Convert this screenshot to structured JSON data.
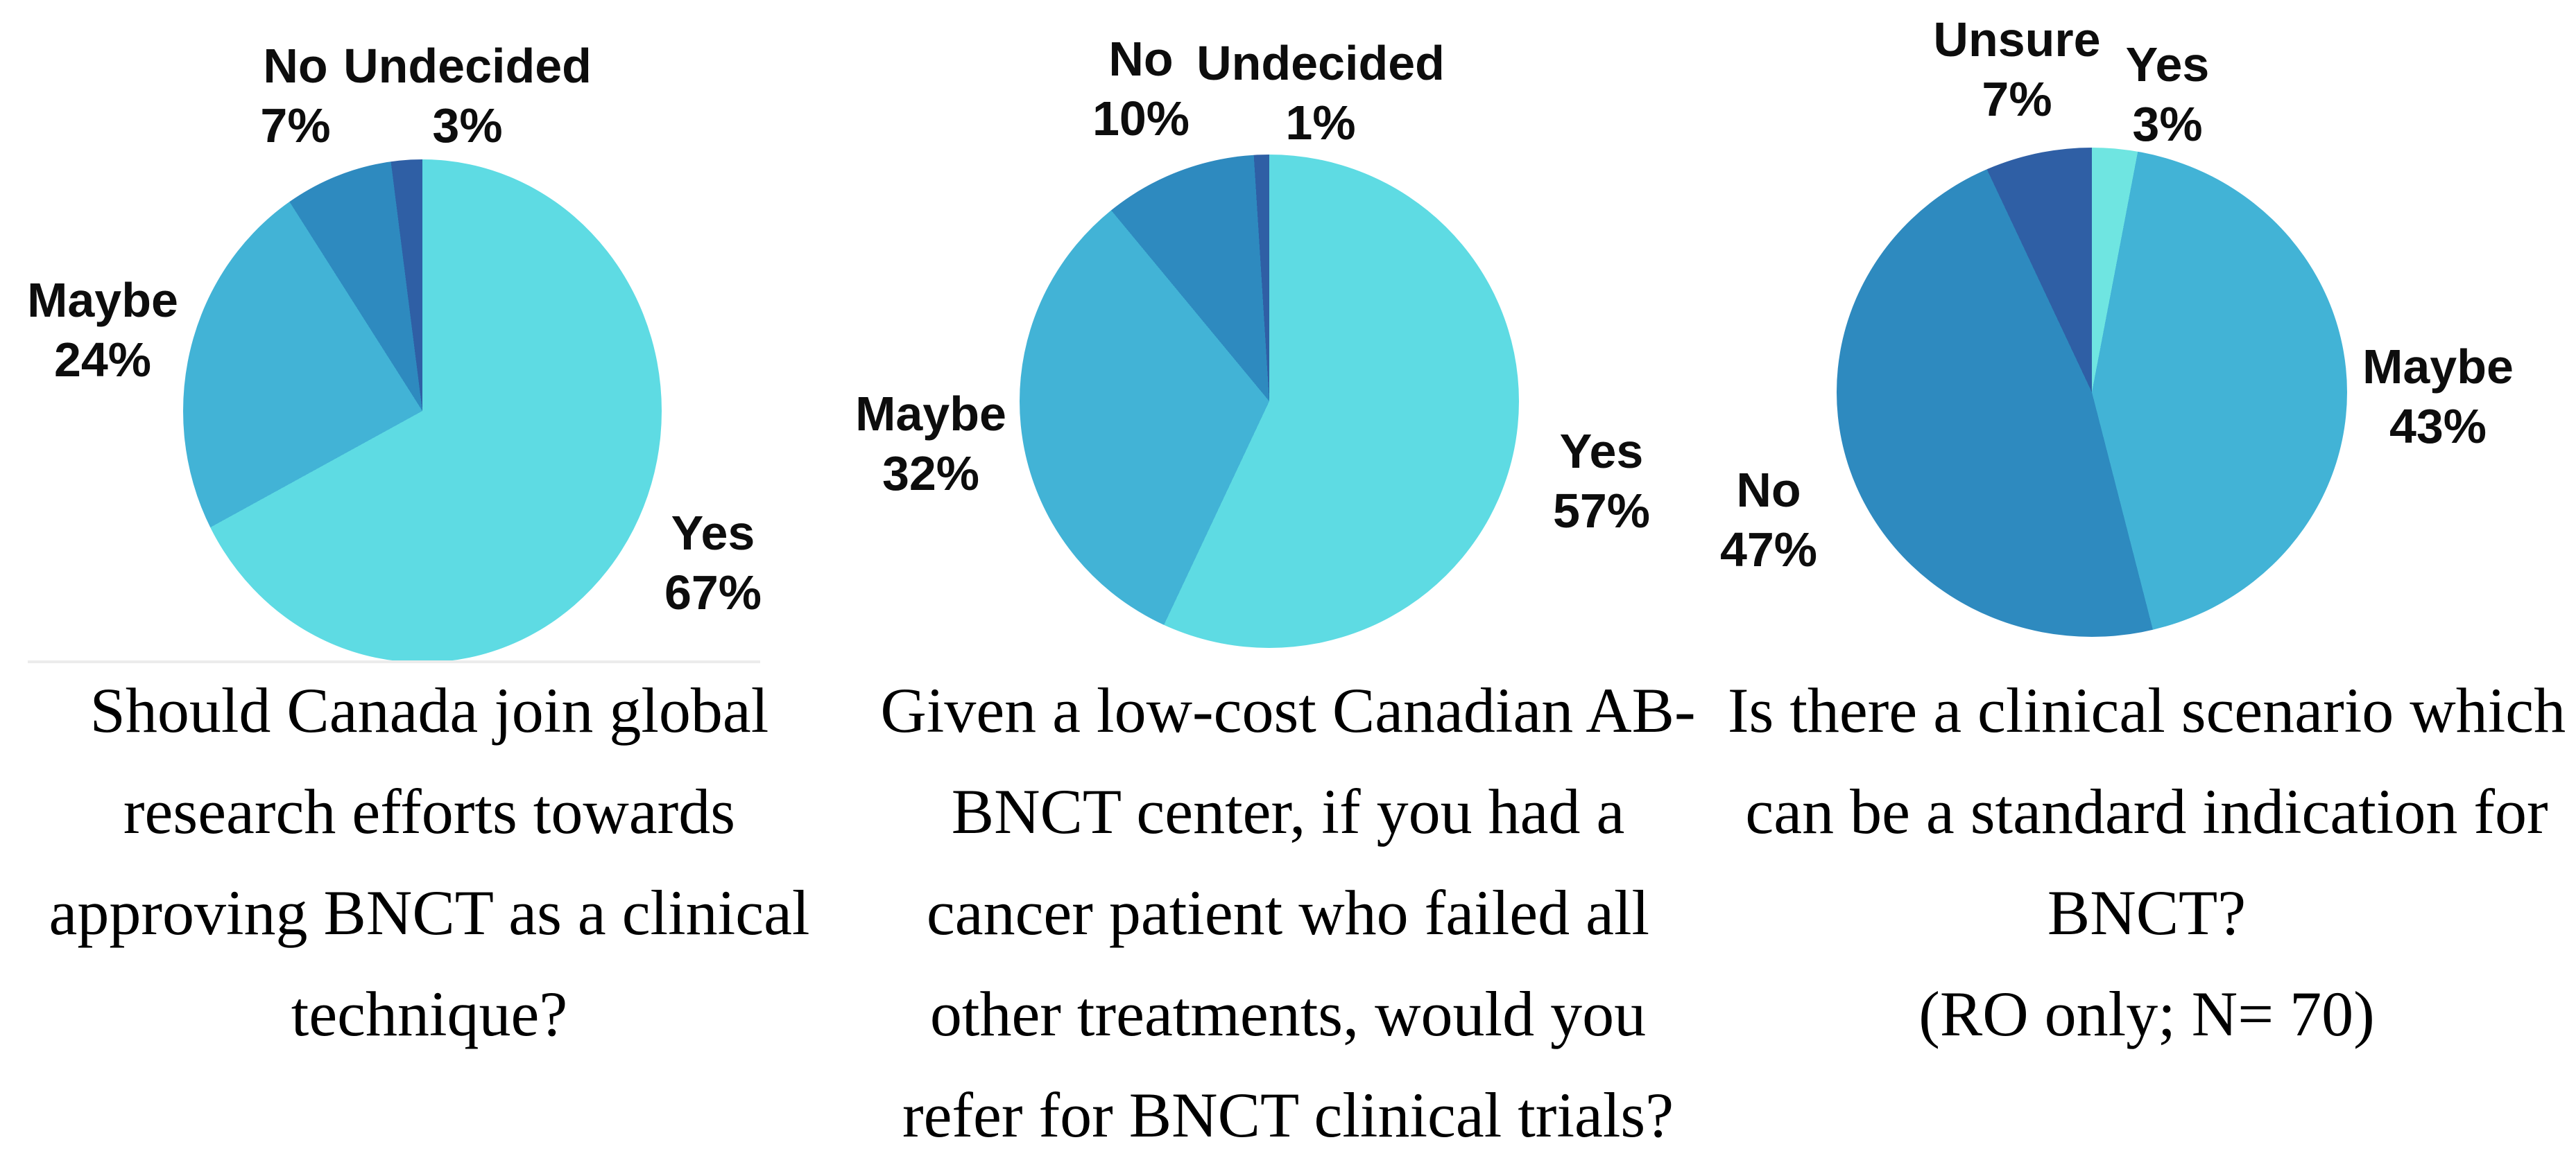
{
  "figure": {
    "background": "#ffffff",
    "label_text_color": "#0d0d0d",
    "caption_text_color": "#000000",
    "divider_color": "#ececec"
  },
  "palette": {
    "yes_cyan": "#5EDBE3",
    "yes_cyan_light": "#6FE5E1",
    "maybe_blue": "#42B3D6",
    "no_steel_blue": "#2E8ABF",
    "undecided_navy": "#2F5FA5"
  },
  "chart_data": [
    {
      "type": "pie",
      "start_angle_deg": 0,
      "direction": "clockwise",
      "title": "Should Canada join global research efforts towards approving BNCT as a clinical technique?",
      "caption_lines": [
        "Should Canada join global",
        "research efforts towards",
        "approving BNCT as a clinical",
        "technique?"
      ],
      "slices": [
        {
          "label": "Yes",
          "value": 67,
          "pct": "67%",
          "color": "#5EDBE3"
        },
        {
          "label": "Maybe",
          "value": 24,
          "pct": "24%",
          "color": "#42B3D6"
        },
        {
          "label": "No",
          "value": 7,
          "pct": "7%",
          "color": "#2E8ABF"
        },
        {
          "label": "Undecided",
          "value": 3,
          "pct": "3%",
          "color": "#2F5FA5"
        }
      ]
    },
    {
      "type": "pie",
      "start_angle_deg": 0,
      "direction": "clockwise",
      "title": "Given a low-cost Canadian AB-BNCT center, if you had a cancer patient who failed all other treatments, would you refer for BNCT clinical trials?",
      "caption_lines": [
        "Given a low-cost Canadian AB-",
        "BNCT center, if you had a",
        "cancer patient who failed all",
        "other treatments, would you",
        "refer for BNCT clinical trials?"
      ],
      "slices": [
        {
          "label": "Yes",
          "value": 57,
          "pct": "57%",
          "color": "#5EDBE3"
        },
        {
          "label": "Maybe",
          "value": 32,
          "pct": "32%",
          "color": "#42B3D6"
        },
        {
          "label": "No",
          "value": 10,
          "pct": "10%",
          "color": "#2E8ABF"
        },
        {
          "label": "Undecided",
          "value": 1,
          "pct": "1%",
          "color": "#2F5FA5"
        }
      ]
    },
    {
      "type": "pie",
      "start_angle_deg": 0,
      "direction": "clockwise",
      "title": "Is there a clinical scenario which can be a standard indication for BNCT? (RO only; N= 70)",
      "caption_lines": [
        "Is there a clinical scenario which",
        "can be a standard indication for",
        "BNCT?",
        "(RO only; N= 70)"
      ],
      "slices": [
        {
          "label": "Yes",
          "value": 3,
          "pct": "3%",
          "color": "#6FE5E1"
        },
        {
          "label": "Maybe",
          "value": 43,
          "pct": "43%",
          "color": "#42B3D6"
        },
        {
          "label": "No",
          "value": 47,
          "pct": "47%",
          "color": "#2E8ABF"
        },
        {
          "label": "Unsure",
          "value": 7,
          "pct": "7%",
          "color": "#2F5FA5"
        }
      ]
    }
  ]
}
